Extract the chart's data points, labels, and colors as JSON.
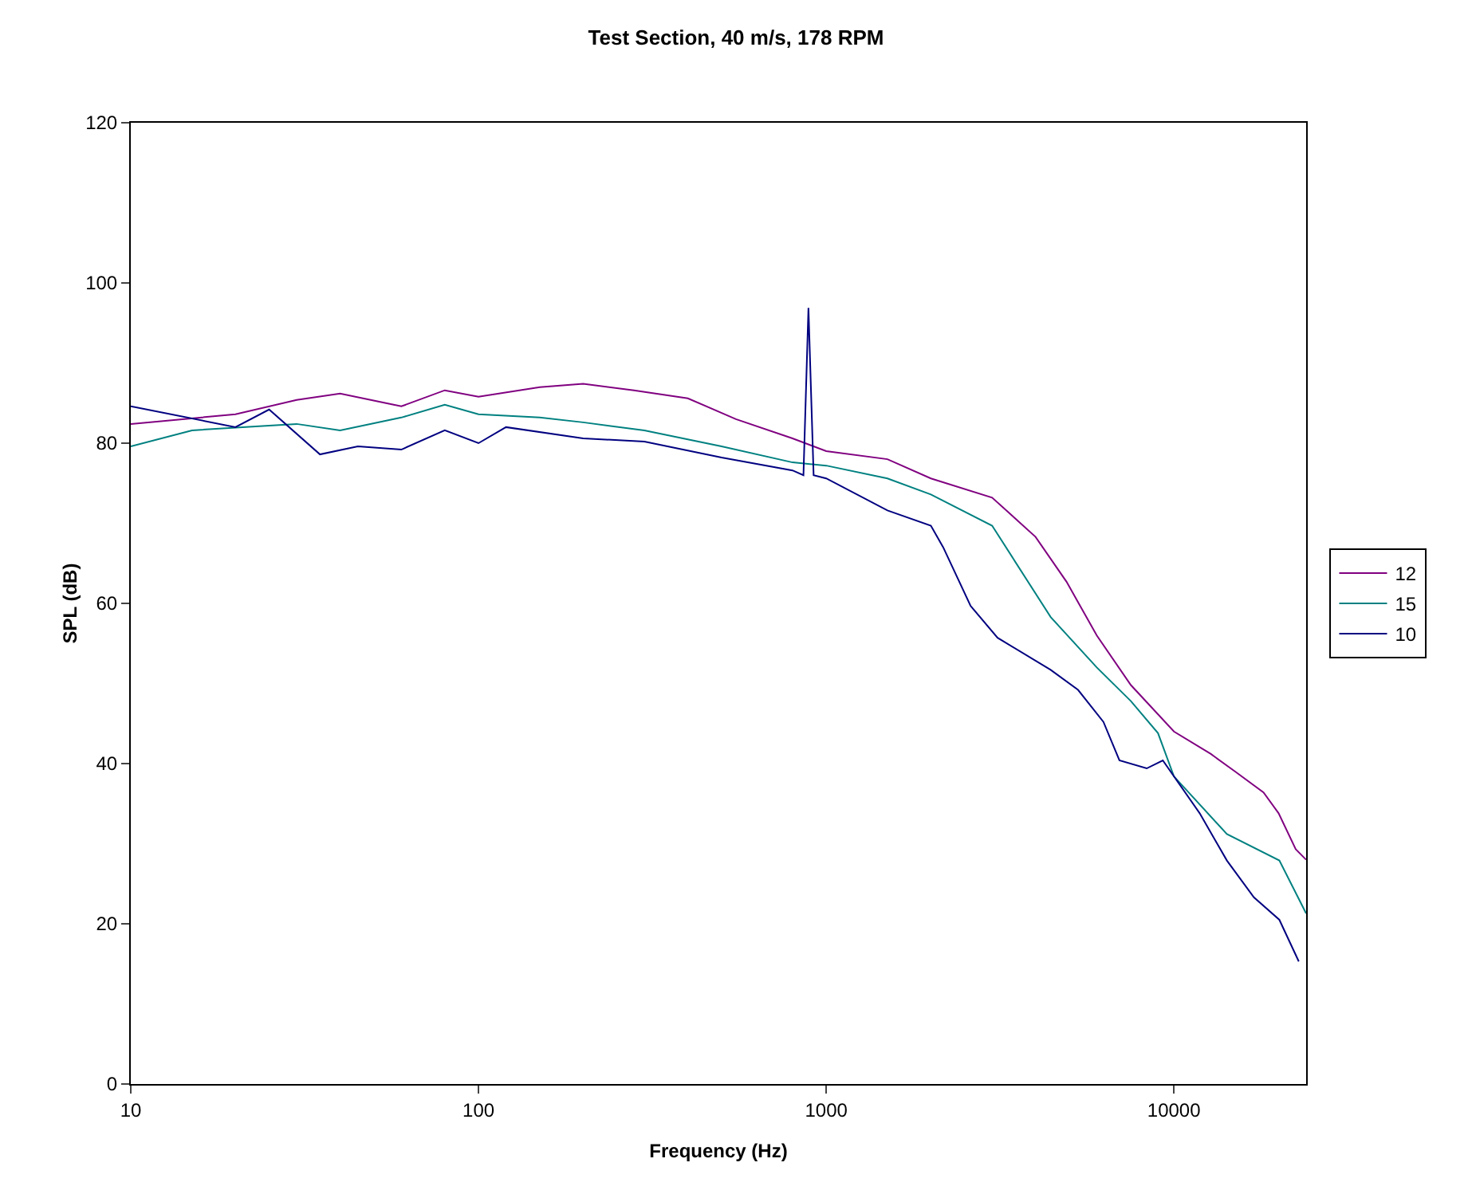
{
  "chart_data": {
    "type": "line",
    "title": "Test Section, 40 m/s, 178 RPM",
    "xlabel": "Frequency (Hz)",
    "ylabel": "SPL (dB)",
    "log": "x",
    "xlim": [
      10,
      24000
    ],
    "xticks": [
      10,
      100,
      1000,
      10000
    ],
    "ylim": [
      0,
      120
    ],
    "yticks": [
      0,
      20,
      40,
      60,
      80,
      100,
      120
    ],
    "grid": false,
    "legend": "right",
    "marker": "none",
    "line_style": "solid",
    "series": [
      {
        "name": "12",
        "color": "#800080",
        "x": [
          10,
          20,
          30,
          40,
          60,
          80,
          100,
          150,
          200,
          280,
          400,
          550,
          800,
          1000,
          1500,
          2000,
          3000,
          4000,
          4910,
          6000,
          7520,
          10000,
          12770,
          15000,
          18100,
          20000,
          22400,
          24000
        ],
        "values": [
          82.4,
          83.6,
          85.4,
          86.2,
          84.6,
          86.6,
          85.8,
          87,
          87.4,
          86.6,
          85.6,
          83,
          80.6,
          79,
          78,
          75.6,
          73.2,
          68.3,
          62.7,
          56,
          49.8,
          44,
          41.2,
          39,
          36.4,
          33.8,
          29.3,
          28
        ]
      },
      {
        "name": "15",
        "color": "#008080",
        "x": [
          10,
          15,
          25,
          30,
          40,
          60,
          80,
          100,
          150,
          200,
          300,
          500,
          800,
          1000,
          1500,
          2000,
          3000,
          4420,
          6000,
          7520,
          9000,
          10000,
          14200,
          20100,
          24000
        ],
        "values": [
          79.6,
          81.6,
          82.2,
          82.4,
          81.6,
          83.2,
          84.8,
          83.6,
          83.2,
          82.6,
          81.6,
          79.6,
          77.6,
          77.2,
          75.6,
          73.6,
          69.7,
          58.3,
          52,
          47.8,
          43.8,
          38.4,
          31.2,
          27.9,
          21.3
        ]
      },
      {
        "name": "10",
        "color": "#000080",
        "x": [
          10,
          20,
          25,
          35,
          45,
          60,
          80,
          100,
          120,
          200,
          300,
          500,
          800,
          860,
          889,
          920,
          1000,
          1500,
          2000,
          2170,
          2600,
          3110,
          4420,
          5300,
          6270,
          6970,
          8350,
          9290,
          11860,
          14200,
          16980,
          20100,
          22860
        ],
        "values": [
          84.6,
          82,
          84.2,
          78.6,
          79.6,
          79.2,
          81.6,
          80,
          82,
          80.6,
          80.2,
          78.2,
          76.6,
          76,
          96.9,
          76,
          75.6,
          71.6,
          69.7,
          67,
          59.7,
          55.7,
          51.7,
          49.2,
          45.2,
          40.4,
          39.4,
          40.4,
          33.8,
          27.9,
          23.3,
          20.5,
          15.3
        ]
      }
    ]
  }
}
